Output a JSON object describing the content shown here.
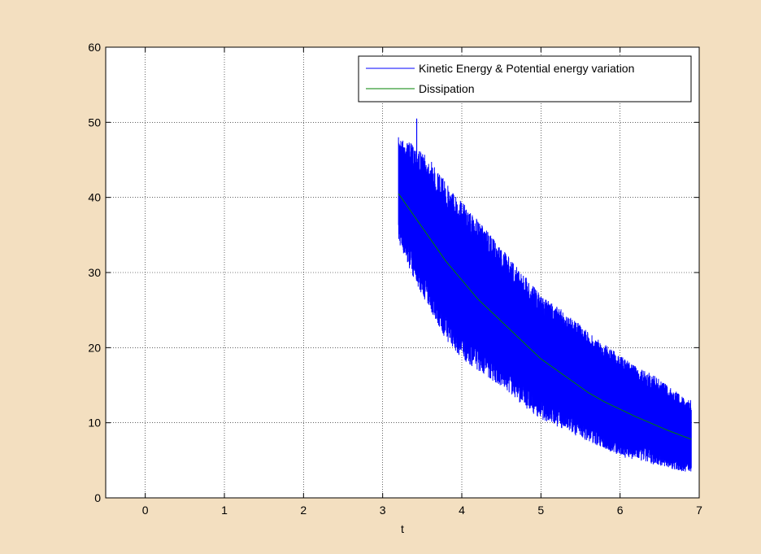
{
  "chart_data": {
    "type": "line",
    "title": "",
    "xlabel": "t",
    "ylabel": "",
    "xlim": [
      -0.5,
      7
    ],
    "ylim": [
      0,
      60
    ],
    "xticks": [
      0,
      1,
      2,
      3,
      4,
      5,
      6,
      7
    ],
    "yticks": [
      0,
      10,
      20,
      30,
      40,
      50,
      60
    ],
    "grid": true,
    "legend_position": "top-right",
    "series": [
      {
        "name": "Kinetic Energy & Potential energy variation",
        "color": "#0000ff",
        "style": "noisy-band",
        "x": [
          3.2,
          3.4,
          3.6,
          3.8,
          4.0,
          4.2,
          4.4,
          4.6,
          4.8,
          5.0,
          5.2,
          5.4,
          5.6,
          5.8,
          6.0,
          6.2,
          6.4,
          6.6,
          6.8,
          6.9
        ],
        "upper": [
          48,
          47,
          45,
          42,
          39.5,
          37,
          34.5,
          32,
          29.5,
          27,
          25.5,
          24,
          22,
          20.5,
          19,
          17.5,
          16.5,
          15,
          13.5,
          13
        ],
        "lower": [
          34,
          29,
          25,
          21,
          18.5,
          17,
          15.5,
          14,
          12,
          10.5,
          9.5,
          8.5,
          7.5,
          6.5,
          5.5,
          5,
          4.5,
          4,
          3.5,
          3.5
        ],
        "peak": {
          "x": 3.43,
          "y": 50.5
        }
      },
      {
        "name": "Dissipation",
        "color": "#008000",
        "x": [
          3.2,
          3.4,
          3.6,
          3.8,
          4.0,
          4.2,
          4.4,
          4.6,
          4.8,
          5.0,
          5.2,
          5.4,
          5.6,
          5.8,
          6.0,
          6.2,
          6.4,
          6.6,
          6.8,
          6.9
        ],
        "y": [
          40.5,
          37.5,
          34.5,
          31.5,
          29,
          26.5,
          24.5,
          22.5,
          20.5,
          18.5,
          17,
          15.5,
          14,
          12.8,
          11.8,
          10.8,
          9.9,
          9,
          8.2,
          7.8
        ]
      }
    ]
  }
}
